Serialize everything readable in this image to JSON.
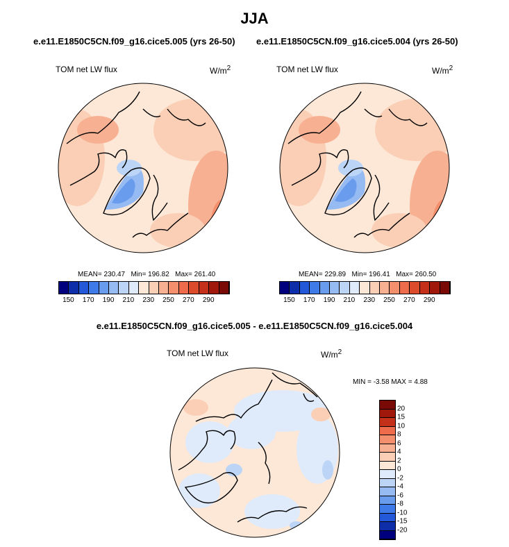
{
  "page": {
    "season": "JJA",
    "left_case_title": "e.e11.E1850C5CN.f09_g16.cice5.005 (yrs 26-50)",
    "right_case_title": "e.e11.E1850C5CN.f09_g16.cice5.004 (yrs 26-50)",
    "diff_title": "e.e11.E1850C5CN.f09_g16.cice5.005 - e.e11.E1850C5CN.f09_g16.cice5.004"
  },
  "chart_data": [
    {
      "type": "heatmap",
      "projection": "north polar stereographic",
      "variable_label": "TOM net LW flux",
      "units_label": "W/m",
      "units_exp": "2",
      "stats": {
        "mean_text": "MEAN= 230.47",
        "min_text": "Min= 196.82",
        "max_text": "Max= 261.40"
      },
      "stats_values": {
        "mean": 230.47,
        "min": 196.82,
        "max": 261.4
      },
      "colorbar_labels": [
        "150",
        "170",
        "190",
        "210",
        "230",
        "250",
        "270",
        "290"
      ]
    },
    {
      "type": "heatmap",
      "projection": "north polar stereographic",
      "variable_label": "TOM net LW flux",
      "units_label": "W/m",
      "units_exp": "2",
      "stats": {
        "mean_text": "MEAN= 229.89",
        "min_text": "Min= 196.41",
        "max_text": "Max= 260.50"
      },
      "stats_values": {
        "mean": 229.89,
        "min": 196.41,
        "max": 260.5
      },
      "colorbar_labels": [
        "150",
        "170",
        "190",
        "210",
        "230",
        "250",
        "270",
        "290"
      ]
    },
    {
      "type": "heatmap",
      "projection": "north polar stereographic",
      "variable_label": "TOM net LW flux",
      "units_label": "W/m",
      "units_exp": "2",
      "minmax_text": "MIN =  -3.58 MAX =    4.88",
      "stats_values": {
        "min": -3.58,
        "max": 4.88
      },
      "colorbar_labels": [
        "20",
        "15",
        "10",
        "8",
        "6",
        "4",
        "2",
        "0",
        "-2",
        "-4",
        "-6",
        "-8",
        "-10",
        "-15",
        "-20"
      ]
    }
  ],
  "colors": {
    "abs_scale": [
      "#00007f",
      "#0d2ea8",
      "#2358d8",
      "#3f7be8",
      "#6a9cee",
      "#95bbf2",
      "#bcd5f7",
      "#dfeafa",
      "#fde8d8",
      "#fbcfb6",
      "#f8b093",
      "#f48f6e",
      "#ee6b4b",
      "#dd4b2d",
      "#c4301a",
      "#a0180c",
      "#7a0a06"
    ],
    "diff_scale": [
      "#7a0a06",
      "#a0180c",
      "#c4301a",
      "#ee6b4b",
      "#f48f6e",
      "#f8b093",
      "#fbcfb6",
      "#fde8d8",
      "#dfeafa",
      "#bcd5f7",
      "#95bbf2",
      "#6a9cee",
      "#3f7be8",
      "#2358d8",
      "#0d2ea8",
      "#00007f"
    ]
  }
}
